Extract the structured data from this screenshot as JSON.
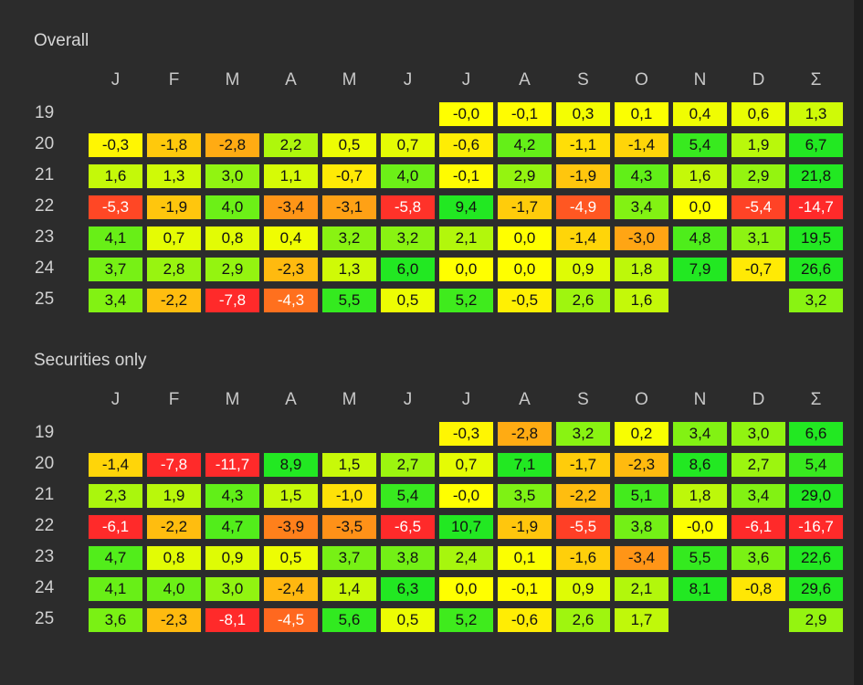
{
  "scale": {
    "min_color": "#ff2a2a",
    "mid_color": "#ffff00",
    "max_color": "#22e822"
  },
  "months": [
    "J",
    "F",
    "M",
    "A",
    "M",
    "J",
    "J",
    "A",
    "S",
    "O",
    "N",
    "D",
    "Σ"
  ],
  "sections": [
    {
      "title": "Overall",
      "rows": [
        {
          "year": "19",
          "values": [
            null,
            null,
            null,
            null,
            null,
            null,
            "-0,0",
            "-0,1",
            "0,3",
            "0,1",
            "0,4",
            "0,6",
            "1,3"
          ]
        },
        {
          "year": "20",
          "values": [
            "-0,3",
            "-1,8",
            "-2,8",
            "2,2",
            "0,5",
            "0,7",
            "-0,6",
            "4,2",
            "-1,1",
            "-1,4",
            "5,4",
            "1,9",
            "6,7"
          ]
        },
        {
          "year": "21",
          "values": [
            "1,6",
            "1,3",
            "3,0",
            "1,1",
            "-0,7",
            "4,0",
            "-0,1",
            "2,9",
            "-1,9",
            "4,3",
            "1,6",
            "2,9",
            "21,8"
          ]
        },
        {
          "year": "22",
          "values": [
            "-5,3",
            "-1,9",
            "4,0",
            "-3,4",
            "-3,1",
            "-5,8",
            "9,4",
            "-1,7",
            "-4,9",
            "3,4",
            "0,0",
            "-5,4",
            "-14,7"
          ]
        },
        {
          "year": "23",
          "values": [
            "4,1",
            "0,7",
            "0,8",
            "0,4",
            "3,2",
            "3,2",
            "2,1",
            "0,0",
            "-1,4",
            "-3,0",
            "4,8",
            "3,1",
            "19,5"
          ]
        },
        {
          "year": "24",
          "values": [
            "3,7",
            "2,8",
            "2,9",
            "-2,3",
            "1,3",
            "6,0",
            "0,0",
            "0,0",
            "0,9",
            "1,8",
            "7,9",
            "-0,7",
            "26,6"
          ]
        },
        {
          "year": "25",
          "values": [
            "3,4",
            "-2,2",
            "-7,8",
            "-4,3",
            "5,5",
            "0,5",
            "5,2",
            "-0,5",
            "2,6",
            "1,6",
            null,
            null,
            "3,2"
          ]
        }
      ]
    },
    {
      "title": "Securities only",
      "rows": [
        {
          "year": "19",
          "values": [
            null,
            null,
            null,
            null,
            null,
            null,
            "-0,3",
            "-2,8",
            "3,2",
            "0,2",
            "3,4",
            "3,0",
            "6,6"
          ]
        },
        {
          "year": "20",
          "values": [
            "-1,4",
            "-7,8",
            "-11,7",
            "8,9",
            "1,5",
            "2,7",
            "0,7",
            "7,1",
            "-1,7",
            "-2,3",
            "8,6",
            "2,7",
            "5,4"
          ]
        },
        {
          "year": "21",
          "values": [
            "2,3",
            "1,9",
            "4,3",
            "1,5",
            "-1,0",
            "5,4",
            "-0,0",
            "3,5",
            "-2,2",
            "5,1",
            "1,8",
            "3,4",
            "29,0"
          ]
        },
        {
          "year": "22",
          "values": [
            "-6,1",
            "-2,2",
            "4,7",
            "-3,9",
            "-3,5",
            "-6,5",
            "10,7",
            "-1,9",
            "-5,5",
            "3,8",
            "-0,0",
            "-6,1",
            "-16,7"
          ]
        },
        {
          "year": "23",
          "values": [
            "4,7",
            "0,8",
            "0,9",
            "0,5",
            "3,7",
            "3,8",
            "2,4",
            "0,1",
            "-1,6",
            "-3,4",
            "5,5",
            "3,6",
            "22,6"
          ]
        },
        {
          "year": "24",
          "values": [
            "4,1",
            "4,0",
            "3,0",
            "-2,4",
            "1,4",
            "6,3",
            "0,0",
            "-0,1",
            "0,9",
            "2,1",
            "8,1",
            "-0,8",
            "29,6"
          ]
        },
        {
          "year": "25",
          "values": [
            "3,6",
            "-2,3",
            "-8,1",
            "-4,5",
            "5,6",
            "0,5",
            "5,2",
            "-0,6",
            "2,6",
            "1,7",
            null,
            null,
            "2,9"
          ]
        }
      ]
    }
  ]
}
